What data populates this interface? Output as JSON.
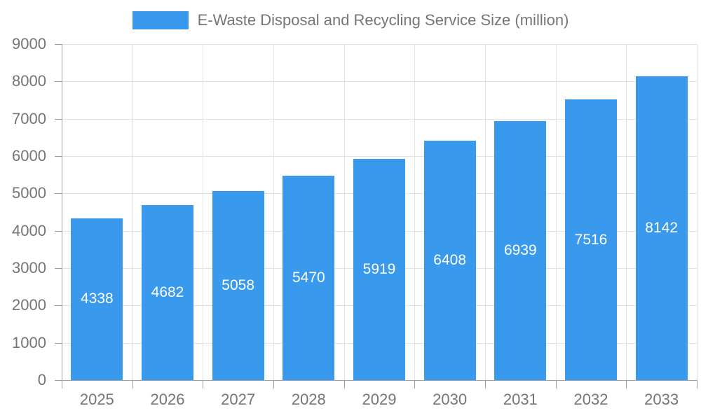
{
  "chart_data": {
    "type": "bar",
    "title": "E-Waste Disposal and Recycling Service Size (million)",
    "legend": [
      {
        "label": "E-Waste Disposal and Recycling Service Size (million)",
        "color": "#3999EC"
      }
    ],
    "legend_position": "top",
    "categories": [
      "2025",
      "2026",
      "2027",
      "2028",
      "2029",
      "2030",
      "2031",
      "2032",
      "2033"
    ],
    "series": [
      {
        "name": "E-Waste Disposal and Recycling Service Size (million)",
        "values": [
          4338,
          4682,
          5058,
          5470,
          5919,
          6408,
          6939,
          7516,
          8142
        ]
      }
    ],
    "bar_value_labels": [
      "4338",
      "4682",
      "5058",
      "5470",
      "5919",
      "6408",
      "6939",
      "7516",
      "8142"
    ],
    "xlabel": "",
    "ylabel": "",
    "ylim": [
      0,
      9000
    ],
    "yticks": [
      0,
      1000,
      2000,
      3000,
      4000,
      5000,
      6000,
      7000,
      8000,
      9000
    ],
    "grid": true,
    "colors": {
      "bar": "#3999EC",
      "bar_label": "#FFFFFF",
      "axis_text": "#757575",
      "legend_text": "#757575",
      "gridline": "#E2E2E2",
      "axis_line": "#9E9E9E",
      "background": "#FFFFFF"
    }
  }
}
